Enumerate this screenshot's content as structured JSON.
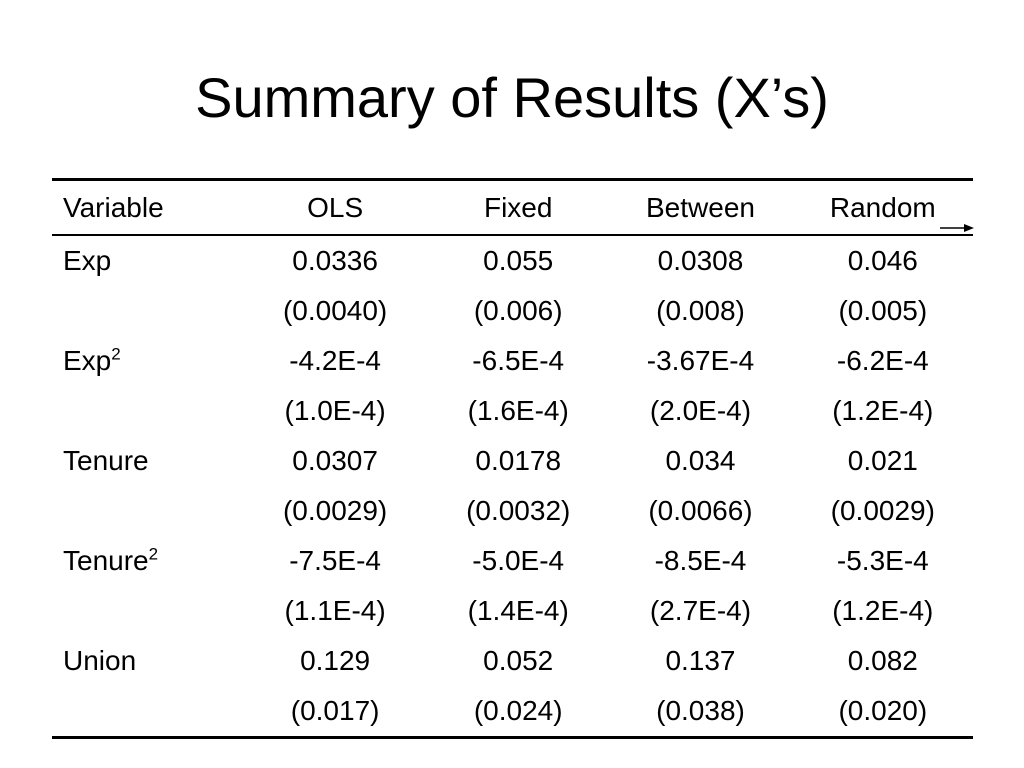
{
  "slide": {
    "title": "Summary of Results (X’s)"
  },
  "table": {
    "headers": [
      "Variable",
      "OLS",
      "Fixed",
      "Between",
      "Random"
    ],
    "rows": [
      {
        "variable": "Exp",
        "superscript": "",
        "coef": [
          "0.0336",
          "0.055",
          "0.0308",
          "0.046"
        ],
        "se": [
          "(0.0040)",
          "(0.006)",
          "(0.008)",
          "(0.005)"
        ]
      },
      {
        "variable": "Exp",
        "superscript": "2",
        "coef": [
          "-4.2E-4",
          "-6.5E-4",
          "-3.67E-4",
          "-6.2E-4"
        ],
        "se": [
          "(1.0E-4)",
          "(1.6E-4)",
          "(2.0E-4)",
          "(1.2E-4)"
        ]
      },
      {
        "variable": "Tenure",
        "superscript": "",
        "coef": [
          "0.0307",
          "0.0178",
          "0.034",
          "0.021"
        ],
        "se": [
          "(0.0029)",
          "(0.0032)",
          "(0.0066)",
          "(0.0029)"
        ]
      },
      {
        "variable": "Tenure",
        "superscript": "2",
        "coef": [
          "-7.5E-4",
          "-5.0E-4",
          "-8.5E-4",
          "-5.3E-4"
        ],
        "se": [
          "(1.1E-4)",
          "(1.4E-4)",
          "(2.7E-4)",
          "(1.2E-4)"
        ]
      },
      {
        "variable": "Union",
        "superscript": "",
        "coef": [
          "0.129",
          "0.052",
          "0.137",
          "0.082"
        ],
        "se": [
          "(0.017)",
          "(0.024)",
          "(0.038)",
          "(0.020)"
        ]
      }
    ]
  }
}
